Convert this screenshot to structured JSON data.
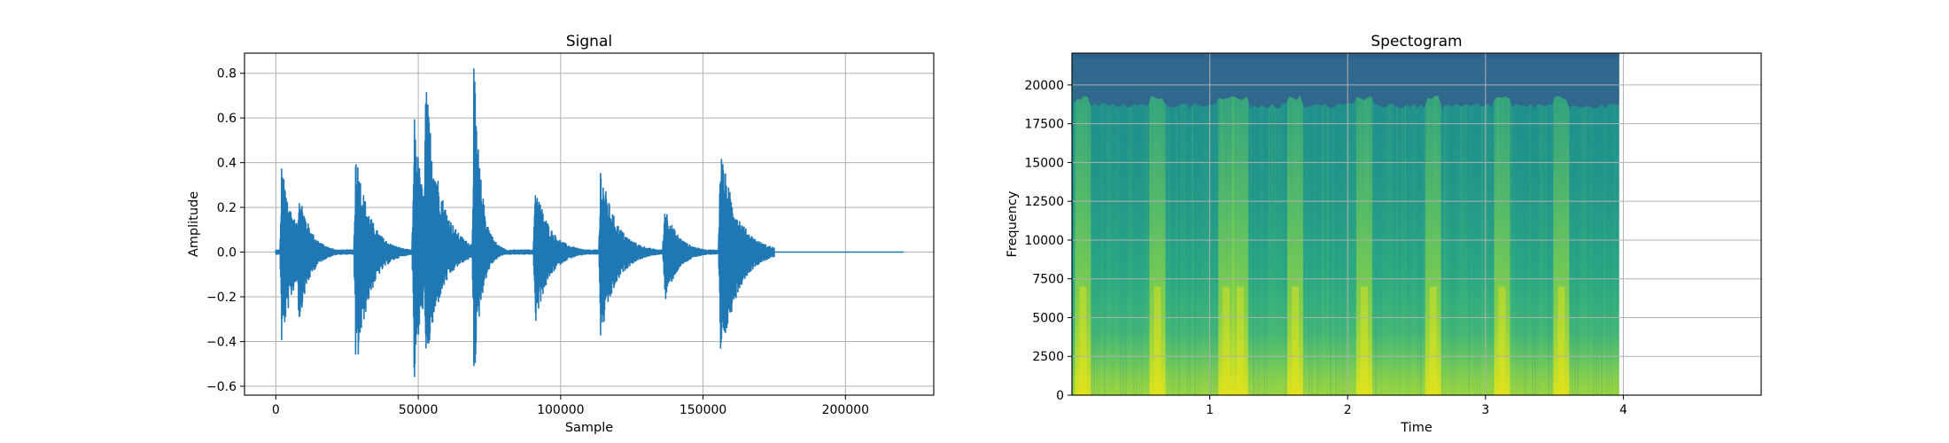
{
  "chart_data": [
    {
      "type": "line",
      "title": "Signal",
      "xlabel": "Sample",
      "ylabel": "Amplitude",
      "xlim": [
        -11000,
        231000
      ],
      "ylim": [
        -0.64,
        0.89
      ],
      "grid": true,
      "x_ticks": [
        0,
        50000,
        100000,
        150000,
        200000
      ],
      "y_ticks": [
        -0.6,
        -0.4,
        -0.2,
        0.0,
        0.2,
        0.4,
        0.6,
        0.8
      ],
      "x_tick_labels": [
        "0",
        "50000",
        "100000",
        "150000",
        "200000"
      ],
      "y_tick_labels": [
        "−0.6",
        "−0.4",
        "−0.2",
        "0.0",
        "0.2",
        "0.4",
        "0.6",
        "0.8"
      ],
      "color": "#1f77b4",
      "series": [
        {
          "events": [
            {
              "x": 2000,
              "peak": 0.35,
              "trough": -0.38,
              "decay": 4500
            },
            {
              "x": 8000,
              "peak": 0.27,
              "trough": -0.3,
              "decay": 3500
            },
            {
              "x": 28000,
              "peak": 0.44,
              "trough": -0.54,
              "decay": 4500
            },
            {
              "x": 48500,
              "peak": 0.61,
              "trough": -0.57,
              "decay": 3500
            },
            {
              "x": 52500,
              "peak": 0.75,
              "trough": -0.51,
              "decay": 5000
            },
            {
              "x": 69500,
              "peak": 0.83,
              "trough": -0.57,
              "decay": 2500
            },
            {
              "x": 91000,
              "peak": 0.29,
              "trough": -0.3,
              "decay": 4500
            },
            {
              "x": 114000,
              "peak": 0.35,
              "trough": -0.37,
              "decay": 5000
            },
            {
              "x": 136500,
              "peak": 0.18,
              "trough": -0.2,
              "decay": 4000
            },
            {
              "x": 156000,
              "peak": 0.45,
              "trough": -0.5,
              "decay": 5500
            }
          ],
          "signal_end": 175000,
          "line_end": 220500
        }
      ]
    },
    {
      "type": "heatmap",
      "title": "Spectogram",
      "xlabel": "Time",
      "ylabel": "Frequency",
      "xlim": [
        0,
        5
      ],
      "ylim": [
        0,
        22050
      ],
      "grid": true,
      "data_end_time": 3.97,
      "x_ticks": [
        1,
        2,
        3,
        4
      ],
      "y_ticks": [
        0,
        2500,
        5000,
        7500,
        10000,
        12500,
        15000,
        17500,
        20000
      ],
      "x_tick_labels": [
        "1",
        "2",
        "3",
        "4"
      ],
      "y_tick_labels": [
        "0",
        "2500",
        "5000",
        "7500",
        "10000",
        "12500",
        "15000",
        "17500",
        "20000"
      ],
      "colormap": [
        "#440154",
        "#3b528b",
        "#21918c",
        "#5ec962",
        "#fde725"
      ],
      "burst_times": [
        0.08,
        0.62,
        1.12,
        1.22,
        1.62,
        2.12,
        2.62,
        3.12,
        3.55
      ],
      "cutoff_frequency": 19000
    }
  ]
}
